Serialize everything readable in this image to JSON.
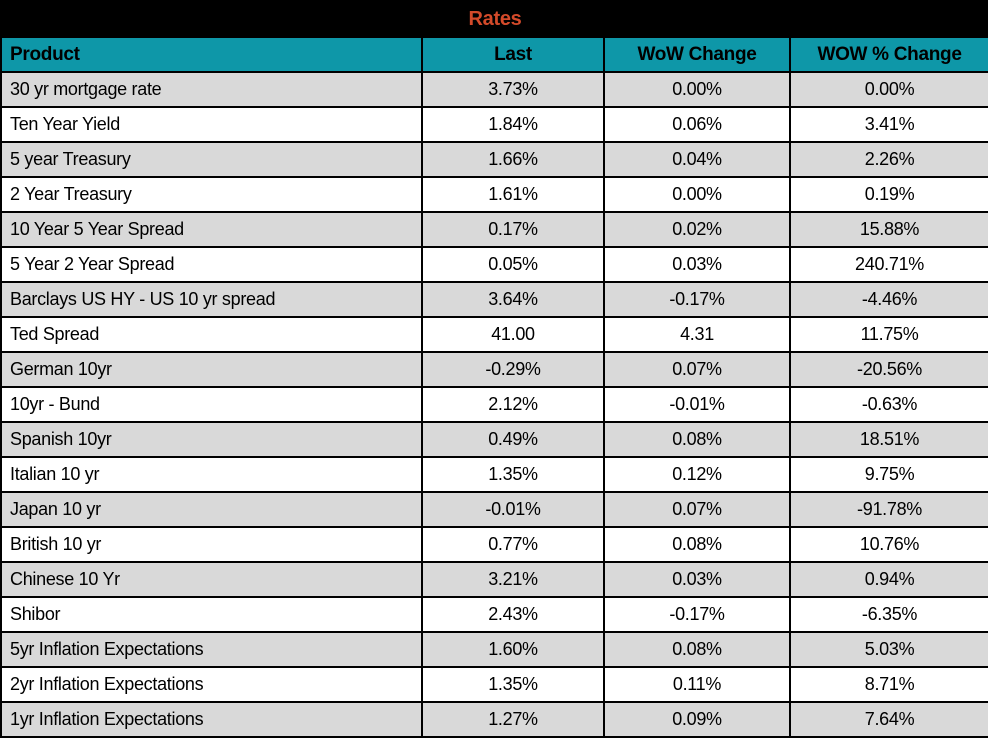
{
  "title": "Rates",
  "colors": {
    "title_bg": "#000000",
    "title_text": "#D34A2A",
    "header_bg": "#0E97A8",
    "header_text": "#000000",
    "row_alt_bg": "#D9D9D9",
    "row_bg": "#FFFFFF",
    "border": "#000000",
    "cell_text": "#000000"
  },
  "chart_data": {
    "type": "table",
    "title": "Rates",
    "columns": [
      "Product",
      "Last",
      "WoW Change",
      "WOW % Change"
    ],
    "rows": [
      [
        "30 yr mortgage rate",
        "3.73%",
        "0.00%",
        "0.00%"
      ],
      [
        "Ten Year Yield",
        "1.84%",
        "0.06%",
        "3.41%"
      ],
      [
        "5 year Treasury",
        "1.66%",
        "0.04%",
        "2.26%"
      ],
      [
        "2 Year Treasury",
        "1.61%",
        "0.00%",
        "0.19%"
      ],
      [
        "10 Year 5 Year Spread",
        "0.17%",
        "0.02%",
        "15.88%"
      ],
      [
        "5 Year 2 Year Spread",
        "0.05%",
        "0.03%",
        "240.71%"
      ],
      [
        "Barclays US HY - US 10 yr spread",
        "3.64%",
        "-0.17%",
        "-4.46%"
      ],
      [
        "Ted Spread",
        "41.00",
        "4.31",
        "11.75%"
      ],
      [
        "German 10yr",
        "-0.29%",
        "0.07%",
        "-20.56%"
      ],
      [
        "10yr - Bund",
        "2.12%",
        "-0.01%",
        "-0.63%"
      ],
      [
        "Spanish 10yr",
        "0.49%",
        "0.08%",
        "18.51%"
      ],
      [
        "Italian 10 yr",
        "1.35%",
        "0.12%",
        "9.75%"
      ],
      [
        "Japan 10 yr",
        "-0.01%",
        "0.07%",
        "-91.78%"
      ],
      [
        "British 10 yr",
        "0.77%",
        "0.08%",
        "10.76%"
      ],
      [
        "Chinese 10 Yr",
        "3.21%",
        "0.03%",
        "0.94%"
      ],
      [
        "Shibor",
        "2.43%",
        "-0.17%",
        "-6.35%"
      ],
      [
        "5yr Inflation Expectations",
        "1.60%",
        "0.08%",
        "5.03%"
      ],
      [
        "2yr Inflation Expectations",
        "1.35%",
        "0.11%",
        "8.71%"
      ],
      [
        "1yr Inflation Expectations",
        "1.27%",
        "0.09%",
        "7.64%"
      ]
    ],
    "layout": {
      "alternating_rows": true,
      "first_data_row_shaded": true,
      "grid": true
    }
  }
}
